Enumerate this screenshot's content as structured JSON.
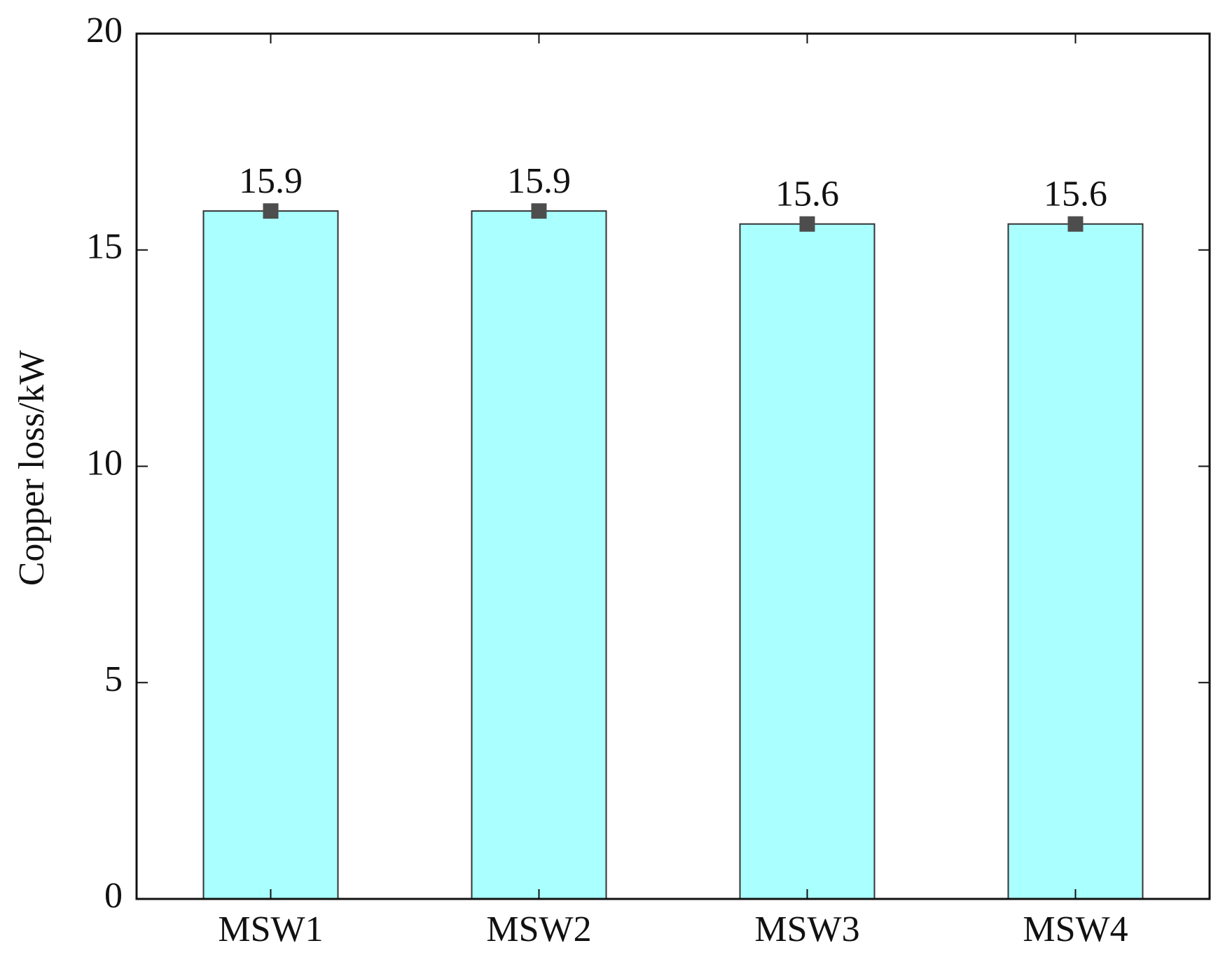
{
  "chart_data": {
    "type": "bar",
    "y_label": "Copper loss/kW",
    "categories": [
      "MSW1",
      "MSW2",
      "MSW3",
      "MSW4"
    ],
    "values": [
      15.9,
      15.9,
      15.6,
      15.6
    ],
    "color": "#aaffff",
    "marker_color": "#4d4d4d",
    "ylim": [
      0,
      20
    ],
    "yticks": [
      0,
      5,
      10,
      15,
      20
    ],
    "grid": false
  }
}
